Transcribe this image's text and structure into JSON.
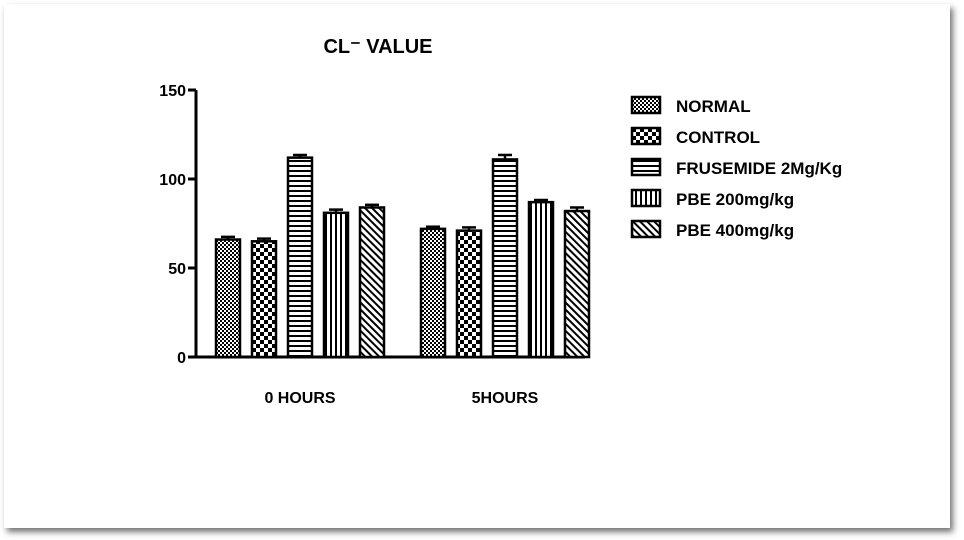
{
  "chart_data": {
    "type": "bar",
    "title": "CL⁻ VALUE",
    "categories": [
      "0 HOURS",
      "5HOURS"
    ],
    "series": [
      {
        "name": "NORMAL",
        "values": [
          66,
          72
        ],
        "errors": [
          1.5,
          1.2
        ],
        "pattern": "crosshatch"
      },
      {
        "name": "CONTROL",
        "values": [
          65,
          71
        ],
        "errors": [
          1.5,
          1.8
        ],
        "pattern": "checker"
      },
      {
        "name": "FRUSEMIDE 2Mg/Kg",
        "values": [
          112,
          111
        ],
        "errors": [
          1.5,
          2.5
        ],
        "pattern": "horizontal"
      },
      {
        "name": "PBE 200mg/kg",
        "values": [
          81,
          87
        ],
        "errors": [
          1.8,
          1.2
        ],
        "pattern": "vertical"
      },
      {
        "name": "PBE 400mg/kg",
        "values": [
          84,
          82
        ],
        "errors": [
          1.5,
          2.0
        ],
        "pattern": "diagonal"
      }
    ],
    "ylim": [
      0,
      150
    ],
    "yticks": [
      0,
      50,
      100,
      150
    ],
    "xlabel": "",
    "ylabel": "",
    "grid": false,
    "legend": "right"
  }
}
